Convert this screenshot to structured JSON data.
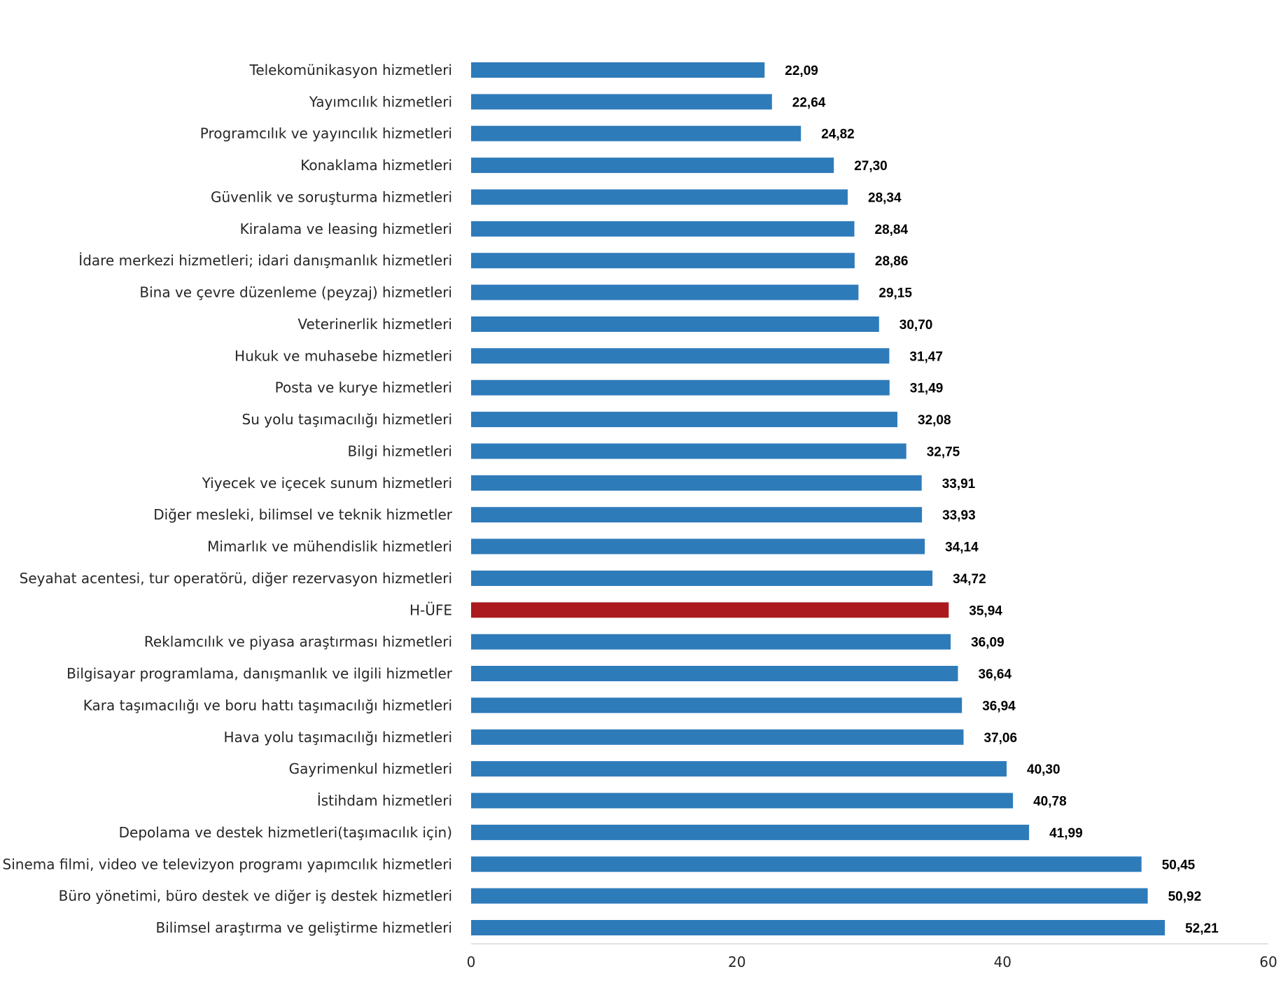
{
  "chart_data": {
    "type": "bar",
    "orientation": "horizontal",
    "categories": [
      "Telekomünikasyon hizmetleri",
      "Yayımcılık hizmetleri",
      "Programcılık ve yayıncılık hizmetleri",
      "Konaklama hizmetleri",
      "Güvenlik ve soruşturma hizmetleri",
      "Kiralama ve leasing hizmetleri",
      "İdare merkezi hizmetleri; idari danışmanlık hizmetleri",
      "Bina ve çevre düzenleme (peyzaj) hizmetleri",
      "Veterinerlik hizmetleri",
      "Hukuk ve muhasebe hizmetleri",
      "Posta ve kurye hizmetleri",
      "Su yolu taşımacılığı hizmetleri",
      "Bilgi hizmetleri",
      "Yiyecek ve içecek sunum hizmetleri",
      "Diğer mesleki, bilimsel ve teknik hizmetler",
      "Mimarlık ve mühendislik hizmetleri",
      "Seyahat acentesi, tur operatörü, diğer rezervasyon hizmetleri",
      "H-ÜFE",
      "Reklamcılık ve piyasa araştırması hizmetleri",
      "Bilgisayar programlama, danışmanlık ve ilgili hizmetler",
      "Kara taşımacılığı ve boru hattı taşımacılığı hizmetleri",
      "Hava yolu taşımacılığı hizmetleri",
      "Gayrimenkul hizmetleri",
      "İstihdam hizmetleri",
      "Depolama ve destek hizmetleri(taşımacılık için)",
      "Sinema filmi, video ve televizyon programı yapımcılık hizmetleri",
      "Büro yönetimi, büro destek ve diğer iş destek hizmetleri",
      "Bilimsel araştırma ve geliştirme hizmetleri"
    ],
    "values": [
      22.09,
      22.64,
      24.82,
      27.3,
      28.34,
      28.84,
      28.86,
      29.15,
      30.7,
      31.47,
      31.49,
      32.08,
      32.75,
      33.91,
      33.93,
      34.14,
      34.72,
      35.94,
      36.09,
      36.64,
      36.94,
      37.06,
      40.3,
      40.78,
      41.99,
      50.45,
      50.92,
      52.21
    ],
    "value_labels": [
      "22,09",
      "22,64",
      "24,82",
      "27,30",
      "28,34",
      "28,84",
      "28,86",
      "29,15",
      "30,70",
      "31,47",
      "31,49",
      "32,08",
      "32,75",
      "33,91",
      "33,93",
      "34,14",
      "34,72",
      "35,94",
      "36,09",
      "36,64",
      "36,94",
      "37,06",
      "40,30",
      "40,78",
      "41,99",
      "50,45",
      "50,92",
      "52,21"
    ],
    "highlight_category": "H-ÜFE",
    "xlim": [
      0,
      60
    ],
    "xticks": [
      "0",
      "20",
      "40",
      "60"
    ],
    "grid": false,
    "title": "",
    "xlabel": "",
    "ylabel": ""
  },
  "colors": {
    "bar": "#2e7bba",
    "highlight_bar": "#ab1a1e",
    "axis": "#d9d9d9",
    "text": "#262626",
    "value_text": "#000000"
  }
}
